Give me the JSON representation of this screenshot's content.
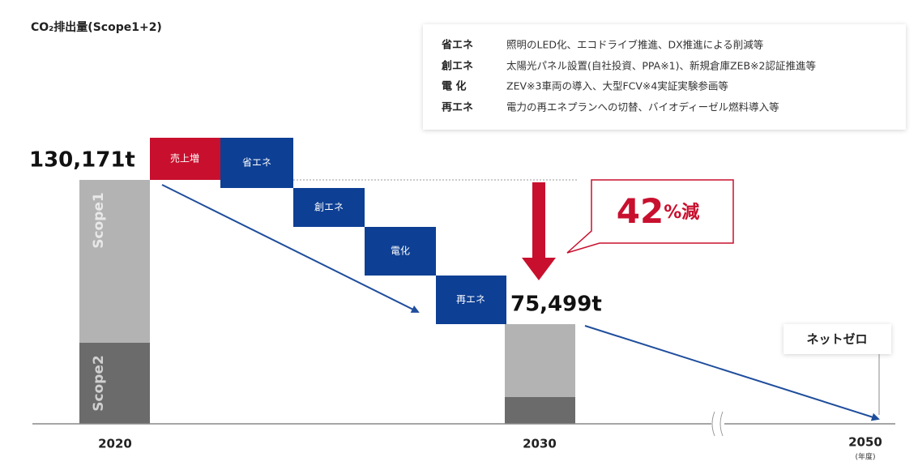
{
  "title": "CO₂排出量(Scope1+2)",
  "legend": [
    {
      "term": "省エネ",
      "desc": "照明のLED化、エコドライブ推進、DX推進による削減等"
    },
    {
      "term": "創エネ",
      "desc": "太陽光パネル設置(自社投資、PPA※1)、新規倉庫ZEB※2認証推進等"
    },
    {
      "term": "電 化",
      "desc": "ZEV※3車両の導入、大型FCV※4実証実験参画等"
    },
    {
      "term": "再エネ",
      "desc": "電力の再エネプランへの切替、バイオディーゼル燃料導入等"
    }
  ],
  "start_total": "130,171t",
  "end_total": "75,499t",
  "scope_labels": [
    "Scope1",
    "Scope2"
  ],
  "steps": [
    "売上増",
    "省エネ",
    "創エネ",
    "電化",
    "再エネ"
  ],
  "reduction": {
    "number": "42",
    "unit": "%減"
  },
  "goal": "ネットゼロ",
  "years": [
    "2020",
    "2030",
    "2050"
  ],
  "year_unit": "(年度)"
}
